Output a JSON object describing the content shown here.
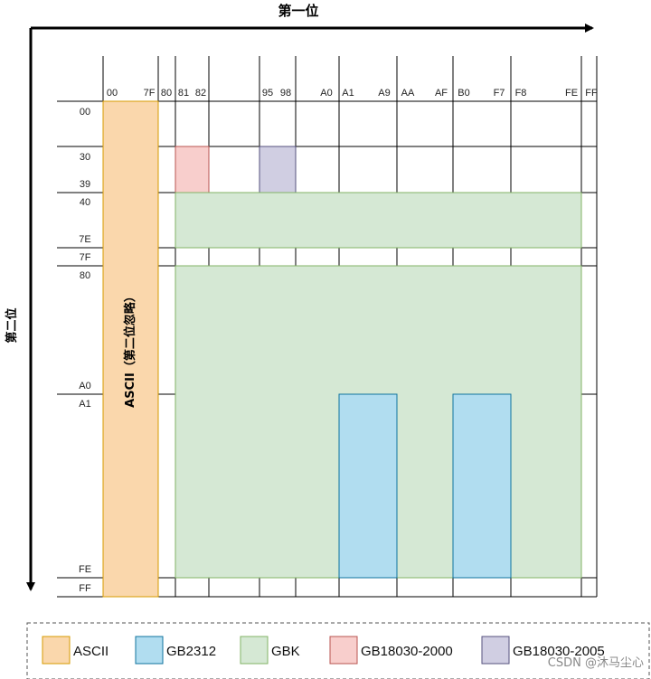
{
  "axes": {
    "first_title": "第一位",
    "second_title": "第二位"
  },
  "first_byte_ticks": [
    "00",
    "7F",
    "80",
    "81",
    "82",
    "95",
    "98",
    "A0",
    "A1",
    "A9",
    "AA",
    "AF",
    "B0",
    "F7",
    "F8",
    "FE",
    "FF"
  ],
  "second_byte_ticks": [
    "00",
    "30",
    "39",
    "40",
    "7E",
    "7F",
    "80",
    "A0",
    "A1",
    "FE",
    "FF"
  ],
  "ascii_label": "ASCII（第二位忽略）",
  "regions": [
    {
      "name": "ascii",
      "encoding": "ASCII",
      "first": [
        "00",
        "7F"
      ],
      "second": [
        "00",
        "FF"
      ]
    },
    {
      "name": "gb18030-2000",
      "encoding": "GB18030-2000",
      "first": [
        "81",
        "82"
      ],
      "second": [
        "30",
        "39"
      ]
    },
    {
      "name": "gb18030-2005",
      "encoding": "GB18030-2005",
      "first": [
        "95",
        "98"
      ],
      "second": [
        "30",
        "39"
      ]
    },
    {
      "name": "gbk-40-7e",
      "encoding": "GBK",
      "first": [
        "81",
        "FE"
      ],
      "second": [
        "40",
        "7E"
      ]
    },
    {
      "name": "gbk-80-fe",
      "encoding": "GBK",
      "first": [
        "81",
        "FE"
      ],
      "second": [
        "80",
        "FE"
      ]
    },
    {
      "name": "gb2312-a1-a9",
      "encoding": "GB2312",
      "first": [
        "A1",
        "A9"
      ],
      "second": [
        "A1",
        "FE"
      ]
    },
    {
      "name": "gb2312-b0-f7",
      "encoding": "GB2312",
      "first": [
        "B0",
        "F7"
      ],
      "second": [
        "A1",
        "FE"
      ]
    }
  ],
  "legend": [
    {
      "label": "ASCII",
      "color": "#fad7ac",
      "border": "#d79b00"
    },
    {
      "label": "GB2312",
      "color": "#b1ddf0",
      "border": "#10739e"
    },
    {
      "label": "GBK",
      "color": "#d5e8d4",
      "border": "#82b366"
    },
    {
      "label": "GB18030-2000",
      "color": "#f8cecc",
      "border": "#b85450"
    },
    {
      "label": "GB18030-2005",
      "color": "#d0cee2",
      "border": "#56517e"
    }
  ],
  "watermark": "CSDN @沐马尘心"
}
